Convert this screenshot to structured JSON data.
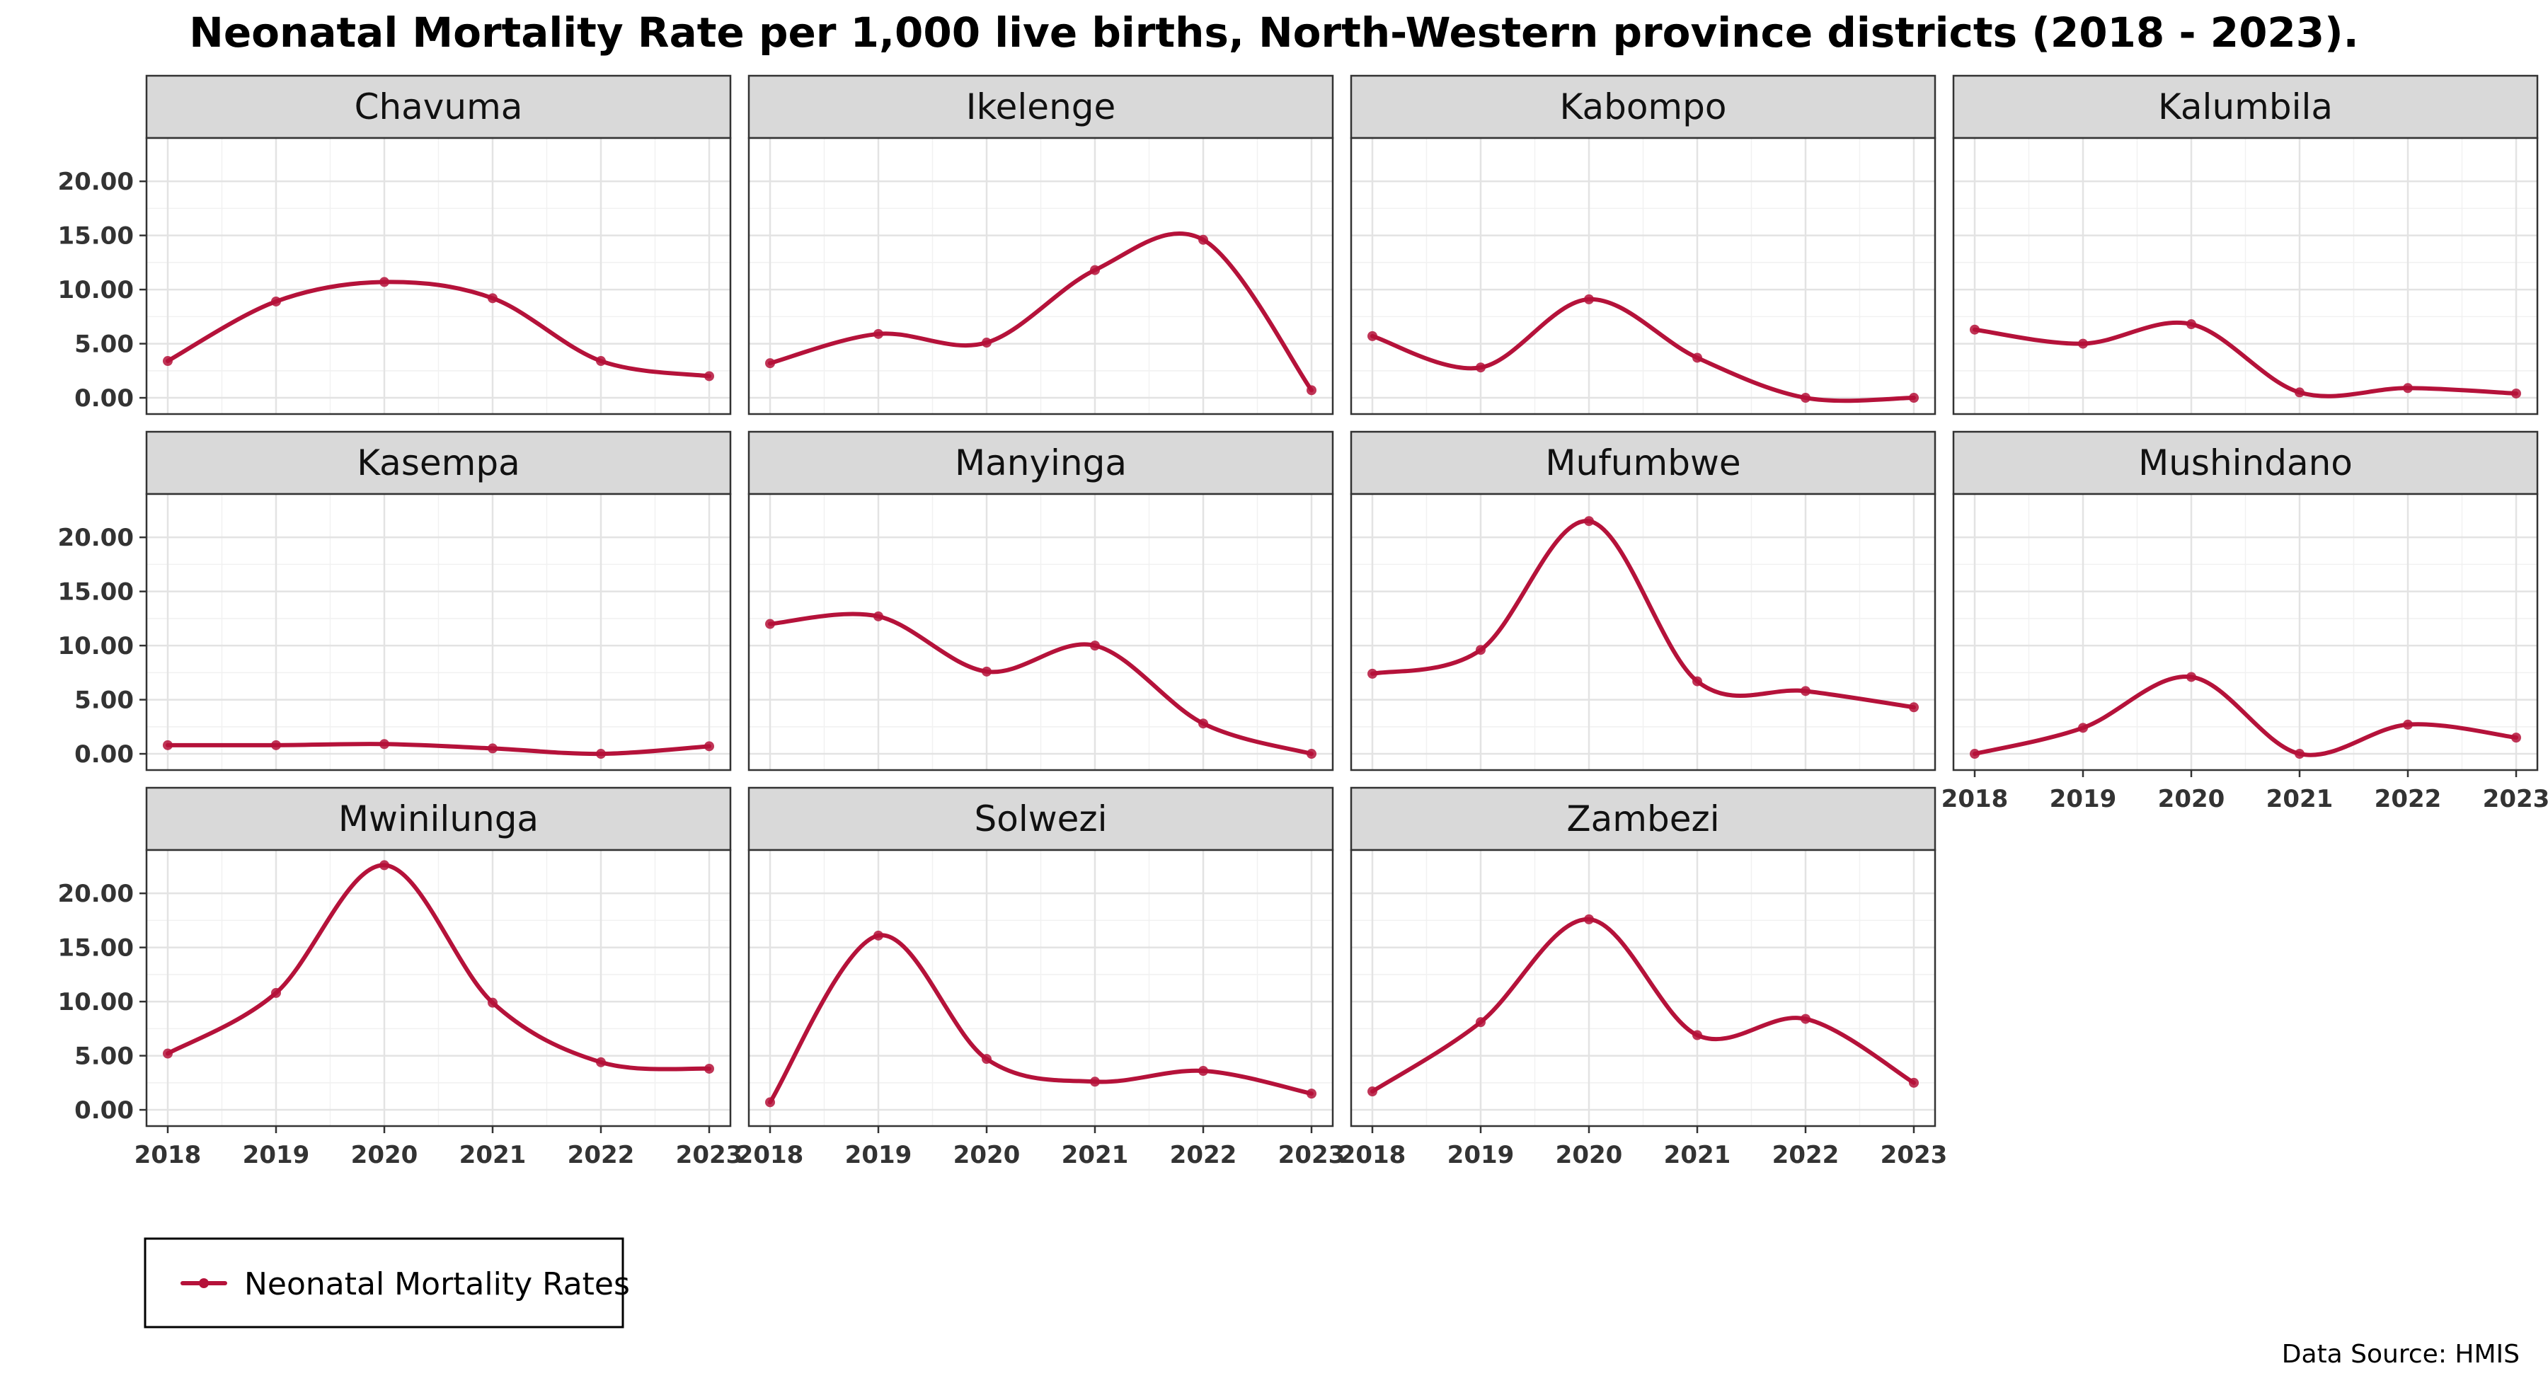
{
  "chart_data": {
    "type": "line",
    "title": "Neonatal Mortality Rate per 1,000 live births, North-Western province districts (2018 - 2023).",
    "x": [
      "2018",
      "2019",
      "2020",
      "2021",
      "2022",
      "2023"
    ],
    "y_ticks": [
      "0.00",
      "5.00",
      "10.00",
      "15.00",
      "20.00"
    ],
    "ylim": [
      -1.5,
      24
    ],
    "grid": true,
    "legend": {
      "label": "Neonatal Mortality Rates",
      "position": "bottom-left"
    },
    "caption": "Data Source: HMIS",
    "color": "#b5123a",
    "panels": [
      {
        "name": "Chavuma",
        "values": [
          3.4,
          8.9,
          10.7,
          9.2,
          3.4,
          2.0
        ]
      },
      {
        "name": "Ikelenge",
        "values": [
          3.2,
          5.9,
          5.1,
          11.8,
          14.6,
          0.7
        ]
      },
      {
        "name": "Kabompo",
        "values": [
          5.7,
          2.8,
          9.1,
          3.7,
          0.0,
          0.0
        ]
      },
      {
        "name": "Kalumbila",
        "values": [
          6.3,
          5.0,
          6.8,
          0.5,
          0.9,
          0.4
        ]
      },
      {
        "name": "Kasempa",
        "values": [
          0.8,
          0.8,
          0.9,
          0.5,
          0.0,
          0.7
        ]
      },
      {
        "name": "Manyinga",
        "values": [
          12.0,
          12.7,
          7.6,
          10.0,
          2.8,
          0.0
        ]
      },
      {
        "name": "Mufumbwe",
        "values": [
          7.4,
          9.6,
          21.5,
          6.7,
          5.8,
          4.3
        ]
      },
      {
        "name": "Mushindano",
        "values": [
          0.0,
          2.4,
          7.1,
          0.0,
          2.7,
          1.5
        ]
      },
      {
        "name": "Mwinilunga",
        "values": [
          5.2,
          10.8,
          22.6,
          9.9,
          4.4,
          3.8
        ]
      },
      {
        "name": "Solwezi",
        "values": [
          0.7,
          16.1,
          4.7,
          2.6,
          3.6,
          1.5
        ]
      },
      {
        "name": "Zambezi",
        "values": [
          1.7,
          8.1,
          17.6,
          6.9,
          8.4,
          2.5
        ]
      }
    ]
  }
}
